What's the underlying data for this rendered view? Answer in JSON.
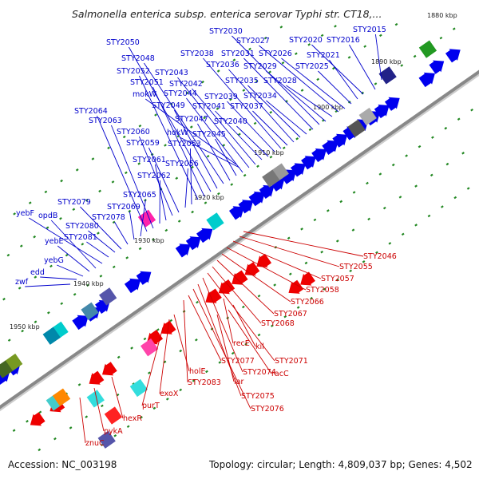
{
  "title": "Salmonella enterica subsp. enterica serovar Typhi str. CT18,...",
  "footer": {
    "accession": "Accession: NC_003198",
    "summary": "Topology: circular; Length: 4,809,037 bp; Genes: 4,502"
  },
  "colors": {
    "forward_label": "#0000cc",
    "reverse_label": "#cc0000",
    "forward_gene": "#0000ee",
    "reverse_gene": "#ee0000",
    "backbone": "#888888",
    "tick_mark": "#228822"
  },
  "icons": {
    "forward_arrow": "forward-gene-arrow",
    "reverse_arrow": "reverse-gene-arrow"
  },
  "ruler": [
    "1880 kbp",
    "1890 kbp",
    "1900 kbp",
    "1910 kbp",
    "1920 kbp",
    "1930 kbp",
    "1940 kbp",
    "1950 kbp"
  ],
  "forward_genes": [
    "STY2015",
    "STY2016",
    "STY2020",
    "STY2021",
    "STY2025",
    "STY2026",
    "STY2027",
    "STY2028",
    "STY2029",
    "STY2030",
    "STY2031",
    "STY2034",
    "STY2035",
    "STY2036",
    "STY2037",
    "STY2038",
    "STY2039",
    "STY2040",
    "STY2041",
    "STY2042",
    "STY2043",
    "STY2044",
    "STY2045",
    "STY2047",
    "STY2048",
    "STY2049",
    "STY2050",
    "STY2051",
    "STY2052",
    "STY2053",
    "STY2056",
    "STY2059",
    "STY2060",
    "STY2061",
    "STY2062",
    "STY2063",
    "STY2064",
    "STY2065",
    "STY2069",
    "STY2078",
    "STY2079",
    "STY2080",
    "STY2081",
    "mokW",
    "hokW",
    "yebF",
    "opdB",
    "yebE",
    "yebG",
    "edd",
    "zwf"
  ],
  "reverse_genes": [
    "STY2046",
    "STY2055",
    "STY2057",
    "STY2058",
    "STY2066",
    "STY2067",
    "STY2068",
    "STY2071",
    "STY2074",
    "STY2075",
    "STY2076",
    "STY2077",
    "STY2083",
    "recE",
    "kil",
    "racC",
    "lar",
    "holE",
    "exoX",
    "purT",
    "hexR",
    "pykA",
    "znuC"
  ]
}
